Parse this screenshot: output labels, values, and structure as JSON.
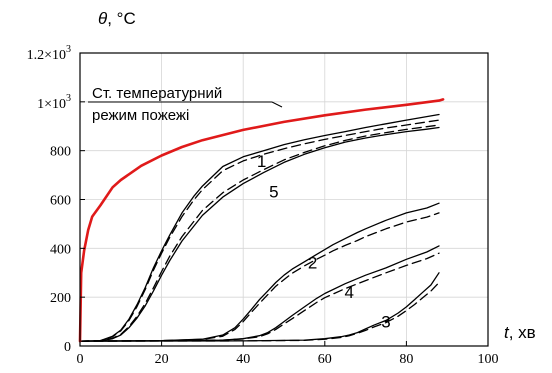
{
  "chart_data": {
    "type": "line",
    "ylabel_var": "θ",
    "ylabel_unit": ", °C",
    "xlabel_var": "t",
    "xlabel_unit": ", хв",
    "xlim": [
      0,
      100
    ],
    "ylim": [
      0,
      1200
    ],
    "x_ticks": [
      {
        "value": 0,
        "label": "0"
      },
      {
        "value": 20,
        "label": "20"
      },
      {
        "value": 40,
        "label": "40"
      },
      {
        "value": 60,
        "label": "60"
      },
      {
        "value": 80,
        "label": "80"
      },
      {
        "value": 100,
        "label": "100"
      }
    ],
    "y_ticks": [
      {
        "value": 0,
        "label": "0",
        "kind": "plain"
      },
      {
        "value": 200,
        "label": "200",
        "kind": "plain"
      },
      {
        "value": 400,
        "label": "400",
        "kind": "plain"
      },
      {
        "value": 600,
        "label": "600",
        "kind": "plain"
      },
      {
        "value": 800,
        "label": "800",
        "kind": "plain"
      },
      {
        "value": 1000,
        "label": "1×10",
        "exp": "3",
        "kind": "sci"
      },
      {
        "value": 1200,
        "label": "1.2×10",
        "exp": "3",
        "kind": "sci"
      }
    ],
    "legend_text": [
      "Ст. температурний",
      "режим пожежі"
    ],
    "series": [
      {
        "name": "Ст. температурний режим пожежі",
        "color": "#e01a1a",
        "style": "solid",
        "width": 2.6,
        "points": [
          [
            0,
            20
          ],
          [
            0.3,
            300
          ],
          [
            1,
            390
          ],
          [
            2,
            475
          ],
          [
            3,
            530
          ],
          [
            5,
            576
          ],
          [
            8,
            650
          ],
          [
            10,
            680
          ],
          [
            15,
            738
          ],
          [
            20,
            780
          ],
          [
            25,
            815
          ],
          [
            30,
            843
          ],
          [
            40,
            885
          ],
          [
            50,
            918
          ],
          [
            60,
            945
          ],
          [
            70,
            968
          ],
          [
            80,
            988
          ],
          [
            88,
            1005
          ],
          [
            89,
            1010
          ]
        ]
      },
      {
        "name": "1",
        "color": "#000000",
        "style": "solid",
        "width": 1.3,
        "points": [
          [
            0,
            20
          ],
          [
            5,
            22
          ],
          [
            8,
            40
          ],
          [
            10,
            65
          ],
          [
            12,
            110
          ],
          [
            14,
            170
          ],
          [
            16,
            240
          ],
          [
            18,
            320
          ],
          [
            20,
            390
          ],
          [
            22,
            455
          ],
          [
            25,
            545
          ],
          [
            28,
            615
          ],
          [
            30,
            655
          ],
          [
            35,
            735
          ],
          [
            40,
            775
          ],
          [
            45,
            800
          ],
          [
            50,
            825
          ],
          [
            55,
            845
          ],
          [
            60,
            862
          ],
          [
            65,
            878
          ],
          [
            70,
            895
          ],
          [
            75,
            910
          ],
          [
            80,
            925
          ],
          [
            88,
            948
          ]
        ]
      },
      {
        "name": "1",
        "color": "#000000",
        "style": "dashed",
        "width": 1.3,
        "points": [
          [
            0,
            20
          ],
          [
            5,
            22
          ],
          [
            8,
            38
          ],
          [
            10,
            62
          ],
          [
            12,
            105
          ],
          [
            14,
            162
          ],
          [
            16,
            232
          ],
          [
            18,
            310
          ],
          [
            20,
            380
          ],
          [
            22,
            445
          ],
          [
            25,
            530
          ],
          [
            28,
            600
          ],
          [
            30,
            640
          ],
          [
            35,
            718
          ],
          [
            40,
            758
          ],
          [
            45,
            785
          ],
          [
            50,
            808
          ],
          [
            55,
            828
          ],
          [
            60,
            846
          ],
          [
            65,
            862
          ],
          [
            70,
            878
          ],
          [
            75,
            893
          ],
          [
            80,
            905
          ],
          [
            88,
            925
          ]
        ]
      },
      {
        "name": "5",
        "color": "#000000",
        "style": "solid",
        "width": 1.3,
        "points": [
          [
            0,
            20
          ],
          [
            5,
            21
          ],
          [
            8,
            30
          ],
          [
            10,
            45
          ],
          [
            12,
            75
          ],
          [
            14,
            115
          ],
          [
            16,
            165
          ],
          [
            18,
            225
          ],
          [
            20,
            290
          ],
          [
            22,
            350
          ],
          [
            25,
            430
          ],
          [
            30,
            535
          ],
          [
            35,
            610
          ],
          [
            40,
            665
          ],
          [
            45,
            710
          ],
          [
            50,
            752
          ],
          [
            55,
            785
          ],
          [
            60,
            812
          ],
          [
            65,
            835
          ],
          [
            70,
            852
          ],
          [
            75,
            866
          ],
          [
            80,
            878
          ],
          [
            85,
            888
          ],
          [
            88,
            895
          ]
        ]
      },
      {
        "name": "5",
        "color": "#000000",
        "style": "dashed",
        "width": 1.3,
        "points": [
          [
            0,
            20
          ],
          [
            5,
            21
          ],
          [
            8,
            32
          ],
          [
            10,
            48
          ],
          [
            12,
            80
          ],
          [
            14,
            122
          ],
          [
            16,
            175
          ],
          [
            18,
            238
          ],
          [
            20,
            305
          ],
          [
            22,
            368
          ],
          [
            25,
            448
          ],
          [
            30,
            555
          ],
          [
            35,
            628
          ],
          [
            40,
            680
          ],
          [
            45,
            722
          ],
          [
            50,
            762
          ],
          [
            55,
            793
          ],
          [
            60,
            820
          ],
          [
            65,
            842
          ],
          [
            70,
            860
          ],
          [
            75,
            874
          ],
          [
            80,
            887
          ],
          [
            85,
            898
          ],
          [
            88,
            905
          ]
        ]
      },
      {
        "name": "2",
        "color": "#000000",
        "style": "solid",
        "width": 1.3,
        "points": [
          [
            0,
            20
          ],
          [
            20,
            22
          ],
          [
            30,
            28
          ],
          [
            35,
            45
          ],
          [
            38,
            75
          ],
          [
            40,
            110
          ],
          [
            42,
            150
          ],
          [
            44,
            190
          ],
          [
            46,
            225
          ],
          [
            48,
            260
          ],
          [
            50,
            290
          ],
          [
            52,
            315
          ],
          [
            55,
            345
          ],
          [
            58,
            375
          ],
          [
            60,
            395
          ],
          [
            62,
            415
          ],
          [
            65,
            440
          ],
          [
            68,
            465
          ],
          [
            70,
            480
          ],
          [
            75,
            515
          ],
          [
            80,
            545
          ],
          [
            85,
            565
          ],
          [
            88,
            585
          ]
        ]
      },
      {
        "name": "2",
        "color": "#000000",
        "style": "dashed",
        "width": 1.3,
        "points": [
          [
            0,
            20
          ],
          [
            20,
            22
          ],
          [
            30,
            27
          ],
          [
            35,
            40
          ],
          [
            38,
            68
          ],
          [
            40,
            100
          ],
          [
            42,
            138
          ],
          [
            44,
            175
          ],
          [
            46,
            210
          ],
          [
            48,
            245
          ],
          [
            50,
            272
          ],
          [
            52,
            298
          ],
          [
            55,
            328
          ],
          [
            58,
            355
          ],
          [
            60,
            372
          ],
          [
            62,
            390
          ],
          [
            65,
            412
          ],
          [
            68,
            432
          ],
          [
            70,
            448
          ],
          [
            75,
            480
          ],
          [
            80,
            508
          ],
          [
            85,
            528
          ],
          [
            88,
            545
          ]
        ]
      },
      {
        "name": "4",
        "color": "#000000",
        "style": "solid",
        "width": 1.3,
        "points": [
          [
            0,
            20
          ],
          [
            20,
            21
          ],
          [
            35,
            24
          ],
          [
            40,
            30
          ],
          [
            44,
            42
          ],
          [
            46,
            55
          ],
          [
            48,
            75
          ],
          [
            50,
            100
          ],
          [
            52,
            125
          ],
          [
            55,
            160
          ],
          [
            58,
            195
          ],
          [
            60,
            215
          ],
          [
            65,
            255
          ],
          [
            70,
            290
          ],
          [
            75,
            320
          ],
          [
            80,
            355
          ],
          [
            85,
            385
          ],
          [
            88,
            410
          ]
        ]
      },
      {
        "name": "4",
        "color": "#000000",
        "style": "dashed",
        "width": 1.3,
        "points": [
          [
            0,
            20
          ],
          [
            20,
            21
          ],
          [
            35,
            24
          ],
          [
            40,
            29
          ],
          [
            44,
            38
          ],
          [
            46,
            50
          ],
          [
            48,
            68
          ],
          [
            50,
            90
          ],
          [
            52,
            112
          ],
          [
            55,
            145
          ],
          [
            58,
            178
          ],
          [
            60,
            198
          ],
          [
            65,
            235
          ],
          [
            70,
            268
          ],
          [
            75,
            300
          ],
          [
            80,
            330
          ],
          [
            85,
            358
          ],
          [
            88,
            380
          ]
        ]
      },
      {
        "name": "3",
        "color": "#000000",
        "style": "solid",
        "width": 1.3,
        "points": [
          [
            0,
            20
          ],
          [
            40,
            21
          ],
          [
            55,
            24
          ],
          [
            60,
            30
          ],
          [
            64,
            38
          ],
          [
            66,
            45
          ],
          [
            68,
            55
          ],
          [
            70,
            70
          ],
          [
            72,
            85
          ],
          [
            75,
            105
          ],
          [
            78,
            135
          ],
          [
            80,
            160
          ],
          [
            82,
            190
          ],
          [
            84,
            220
          ],
          [
            86,
            250
          ],
          [
            88,
            300
          ]
        ]
      },
      {
        "name": "3",
        "color": "#000000",
        "style": "dashed",
        "width": 1.3,
        "points": [
          [
            0,
            20
          ],
          [
            40,
            21
          ],
          [
            55,
            23
          ],
          [
            60,
            28
          ],
          [
            64,
            35
          ],
          [
            66,
            42
          ],
          [
            68,
            52
          ],
          [
            70,
            64
          ],
          [
            72,
            78
          ],
          [
            75,
            96
          ],
          [
            78,
            122
          ],
          [
            80,
            145
          ],
          [
            82,
            170
          ],
          [
            84,
            198
          ],
          [
            86,
            225
          ],
          [
            88,
            260
          ]
        ]
      }
    ],
    "curve_labels": [
      {
        "text": "1",
        "x": 44.5,
        "y": 762
      },
      {
        "text": "5",
        "x": 47.5,
        "y": 637
      },
      {
        "text": "2",
        "x": 57,
        "y": 347
      },
      {
        "text": "4",
        "x": 66,
        "y": 225
      },
      {
        "text": "3",
        "x": 75,
        "y": 105
      }
    ]
  }
}
